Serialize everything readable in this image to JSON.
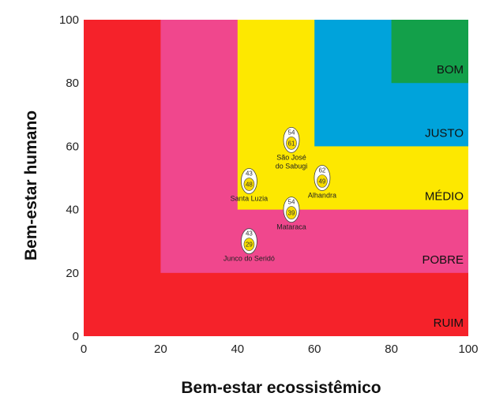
{
  "chart_data": {
    "type": "scatter",
    "xlabel": "Bem-estar ecossistêmico",
    "ylabel": "Bem-estar humano",
    "xlim": [
      0,
      100
    ],
    "ylim": [
      0,
      100
    ],
    "x_ticks": [
      "0",
      "20",
      "40",
      "60",
      "80",
      "100"
    ],
    "y_ticks": [
      "0",
      "20",
      "40",
      "60",
      "80",
      "100"
    ],
    "grid": false,
    "zones": [
      {
        "label": "RUIM",
        "x0": 0,
        "y0": 0,
        "x1": 100,
        "y1": 100,
        "color": "#f5222a"
      },
      {
        "label": "POBRE",
        "x0": 20,
        "y0": 20,
        "x1": 100,
        "y1": 100,
        "color": "#f0478d"
      },
      {
        "label": "MÉDIO",
        "x0": 40,
        "y0": 40,
        "x1": 100,
        "y1": 100,
        "color": "#fde800"
      },
      {
        "label": "JUSTO",
        "x0": 60,
        "y0": 60,
        "x1": 100,
        "y1": 100,
        "color": "#00a3db"
      },
      {
        "label": "BOM",
        "x0": 80,
        "y0": 80,
        "x1": 100,
        "y1": 100,
        "color": "#13a04a"
      }
    ],
    "points": [
      {
        "name": "São José do Sabugi",
        "name_lines": [
          "São José",
          "do Sabugi"
        ],
        "x": 54,
        "y": 61,
        "eco_label": "54",
        "human_label": "61"
      },
      {
        "name": "Alhandra",
        "name_lines": [
          "Alhandra"
        ],
        "x": 62,
        "y": 49,
        "eco_label": "62",
        "human_label": "49"
      },
      {
        "name": "Santa Luzia",
        "name_lines": [
          "Santa Luzia"
        ],
        "x": 43,
        "y": 48,
        "eco_label": "43",
        "human_label": "48"
      },
      {
        "name": "Mataraca",
        "name_lines": [
          "Mataraca"
        ],
        "x": 54,
        "y": 39,
        "eco_label": "54",
        "human_label": "39"
      },
      {
        "name": "Junco do Seridó",
        "name_lines": [
          "Junco do Seridó"
        ],
        "x": 43,
        "y": 29,
        "eco_label": "43",
        "human_label": "29"
      }
    ]
  }
}
